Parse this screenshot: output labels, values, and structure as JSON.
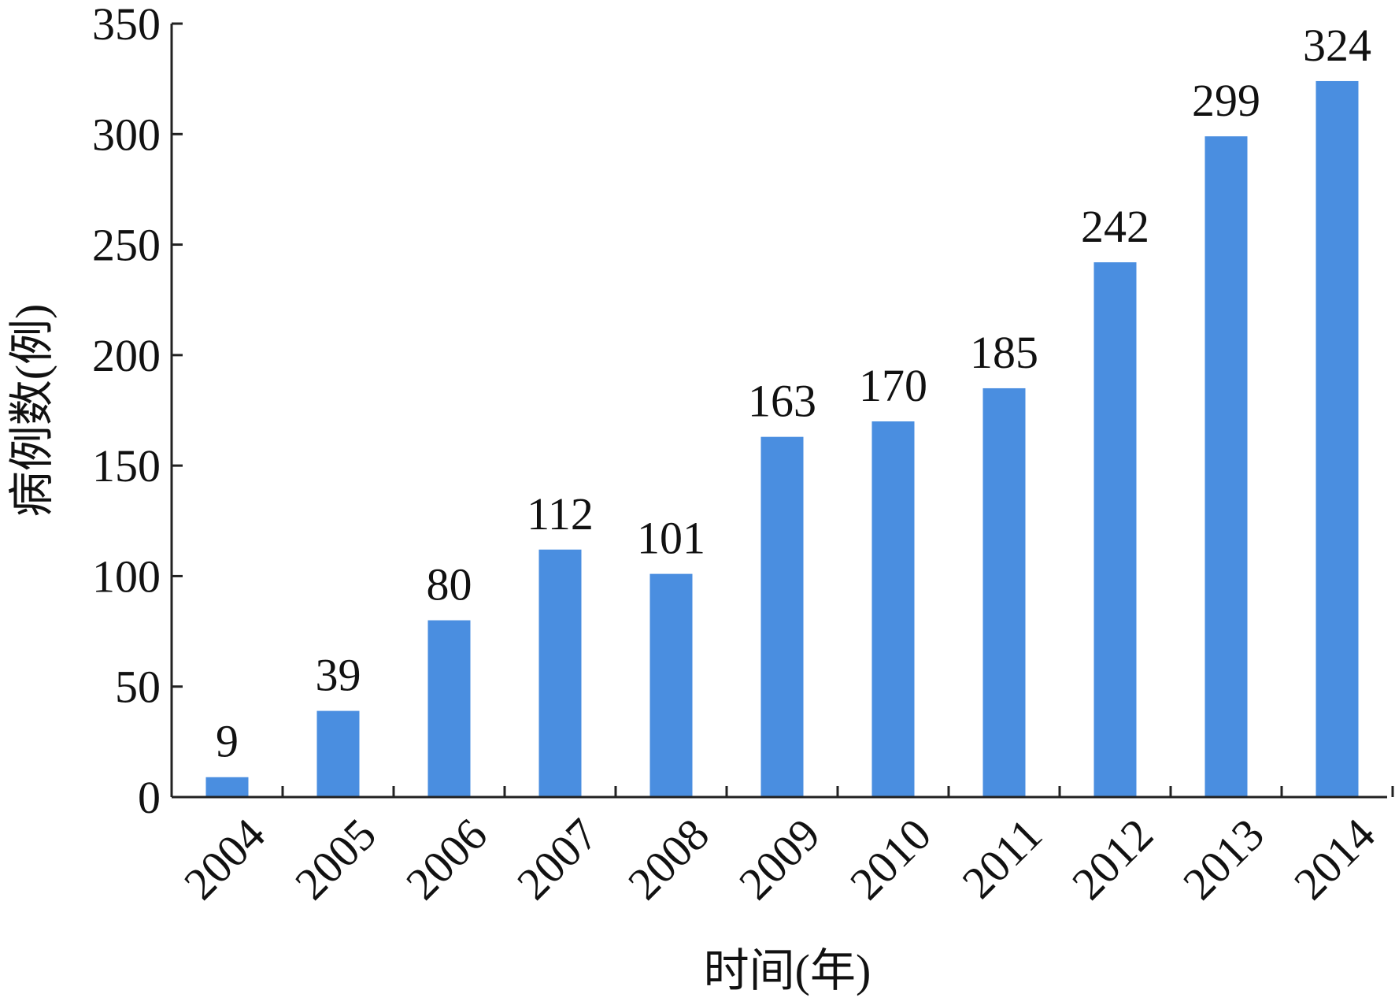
{
  "chart_data": {
    "type": "bar",
    "categories": [
      "2004",
      "2005",
      "2006",
      "2007",
      "2008",
      "2009",
      "2010",
      "2011",
      "2012",
      "2013",
      "2014"
    ],
    "values": [
      9,
      39,
      80,
      112,
      101,
      163,
      170,
      185,
      242,
      299,
      324
    ],
    "data_labels": [
      "9",
      "39",
      "80",
      "112",
      "101",
      "163",
      "170",
      "185",
      "242",
      "299",
      "324"
    ],
    "xlabel": "时间(年)",
    "ylabel": "病例数(例)",
    "ylim": [
      0,
      350
    ],
    "yticks": [
      "0",
      "50",
      "100",
      "150",
      "200",
      "250",
      "300",
      "350"
    ],
    "grid": false,
    "bar_color": "#4a8ee0"
  }
}
